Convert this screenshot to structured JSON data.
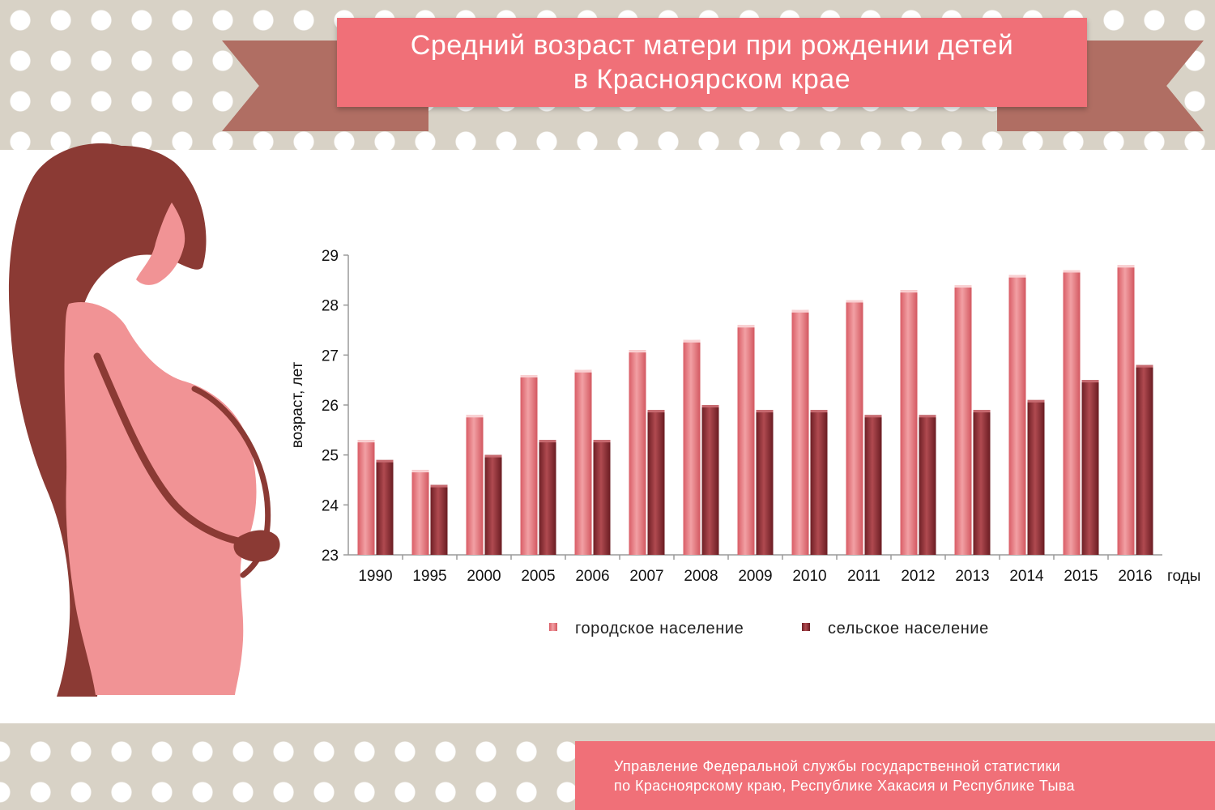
{
  "title": {
    "line1": "Средний возраст матери при рождении детей",
    "line2": "в Красноярском крае"
  },
  "source": {
    "line1": "Управление Федеральной службы государственной статистики",
    "line2": "по Красноярскому краю, Республике Хакасия и Республике Тыва"
  },
  "colors": {
    "title_bg": "#f07078",
    "ribbon_tail": "#b06e63",
    "urban": "#e8737b",
    "rural": "#8e2f35",
    "silhouette_hair": "#8b3a34",
    "silhouette_dress": "#f19395"
  },
  "chart_data": {
    "type": "bar",
    "title": "",
    "xlabel": "годы",
    "ylabel": "возраст, лет",
    "ylim": [
      23,
      29
    ],
    "yticks": [
      "23",
      "24",
      "25",
      "26",
      "27",
      "28",
      "29"
    ],
    "grid": false,
    "legend_position": "bottom",
    "categories": [
      "1990",
      "1995",
      "2000",
      "2005",
      "2006",
      "2007",
      "2008",
      "2009",
      "2010",
      "2011",
      "2012",
      "2013",
      "2014",
      "2015",
      "2016"
    ],
    "series": [
      {
        "name": "городское население",
        "color": "#e8737b",
        "values": [
          25.3,
          24.7,
          25.8,
          26.6,
          26.7,
          27.1,
          27.3,
          27.6,
          27.9,
          28.1,
          28.3,
          28.4,
          28.6,
          28.7,
          28.8
        ]
      },
      {
        "name": "сельское население",
        "color": "#8e2f35",
        "values": [
          24.9,
          24.4,
          25.0,
          25.3,
          25.3,
          25.9,
          26.0,
          25.9,
          25.9,
          25.8,
          25.8,
          25.9,
          26.1,
          26.5,
          26.8
        ]
      }
    ]
  }
}
